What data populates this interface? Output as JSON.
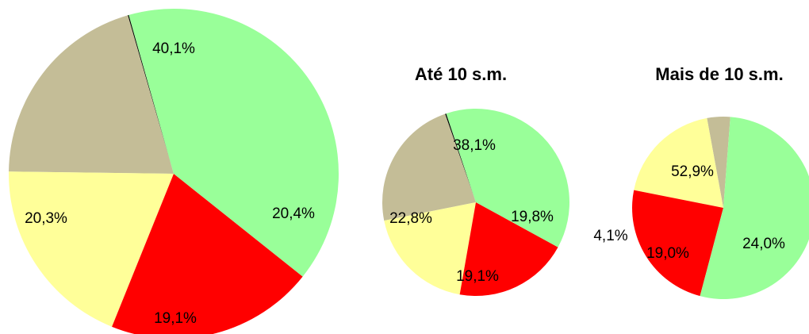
{
  "chart_data": [
    {
      "type": "pie",
      "title": "",
      "slices": [
        {
          "value": 40.1,
          "label": "40,1%",
          "color": "#99ff99"
        },
        {
          "value": 20.4,
          "label": "20,4%",
          "color": "#ff0000"
        },
        {
          "value": 19.1,
          "label": "19,1%",
          "color": "#ffff99"
        },
        {
          "value": 20.3,
          "label": "20,3%",
          "color": "#c4bd97"
        },
        {
          "value": 0.1,
          "label": "",
          "color": "#000000"
        }
      ]
    },
    {
      "type": "pie",
      "title": "Até 10 s.m.",
      "slices": [
        {
          "value": 38.1,
          "label": "38,1%",
          "color": "#99ff99"
        },
        {
          "value": 19.8,
          "label": "19,8%",
          "color": "#ff0000"
        },
        {
          "value": 19.1,
          "label": "19,1%",
          "color": "#ffff99"
        },
        {
          "value": 22.8,
          "label": "22,8%",
          "color": "#c4bd97"
        },
        {
          "value": 0.2,
          "label": "",
          "color": "#000000"
        }
      ]
    },
    {
      "type": "pie",
      "title": "Mais de 10 s.m.",
      "slices": [
        {
          "value": 52.9,
          "label": "52,9%",
          "color": "#99ff99"
        },
        {
          "value": 24.0,
          "label": "24,0%",
          "color": "#ff0000"
        },
        {
          "value": 19.0,
          "label": "19,0%",
          "color": "#ffff99"
        },
        {
          "value": 4.1,
          "label": "4,1%",
          "color": "#c4bd97"
        }
      ]
    }
  ]
}
